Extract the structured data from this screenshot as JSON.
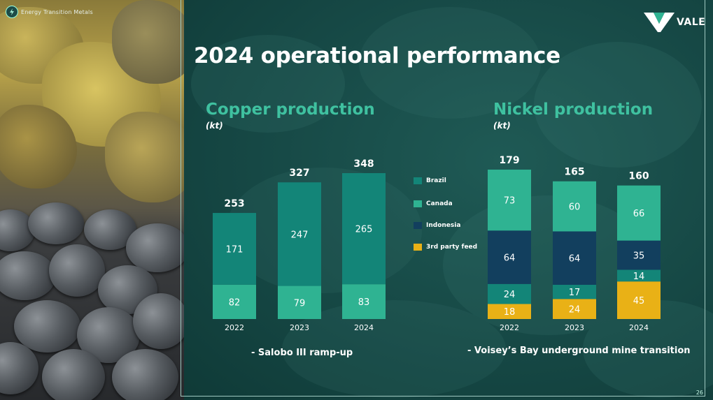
{
  "slide_title": "2024 operational performance",
  "brand_tag": "Energy Transition Metals",
  "logo_text": "VALE",
  "page_number": "26",
  "colors": {
    "brazil": "#138578",
    "canada": "#2fb392",
    "indonesia": "#123f5e",
    "third_party": "#e9b116",
    "accent": "#3fc1a0"
  },
  "copper": {
    "title": "Copper production",
    "unit": "(kt)",
    "note": "- Salobo III ramp-up"
  },
  "nickel": {
    "title": "Nickel production",
    "unit": "(kt)",
    "note": "- Voisey’s Bay underground mine transition"
  },
  "legend": [
    {
      "label": "Brazil",
      "color": "#138578"
    },
    {
      "label": "Canada",
      "color": "#2fb392"
    },
    {
      "label": "Indonesia",
      "color": "#123f5e"
    },
    {
      "label": "3rd party feed",
      "color": "#e9b116"
    }
  ],
  "chart_data": [
    {
      "type": "bar",
      "stacked": true,
      "title": "Copper production",
      "ylabel": "(kt)",
      "categories": [
        "2022",
        "2023",
        "2024"
      ],
      "series": [
        {
          "name": "Canada",
          "values": [
            82,
            79,
            83
          ]
        },
        {
          "name": "Brazil",
          "values": [
            171,
            247,
            265
          ]
        }
      ],
      "totals": [
        253,
        327,
        348
      ],
      "ylim": [
        0,
        348
      ]
    },
    {
      "type": "bar",
      "stacked": true,
      "title": "Nickel production",
      "ylabel": "(kt)",
      "categories": [
        "2022",
        "2023",
        "2024"
      ],
      "series": [
        {
          "name": "3rd party feed",
          "values": [
            18,
            24,
            45
          ]
        },
        {
          "name": "Brazil",
          "values": [
            24,
            17,
            14
          ]
        },
        {
          "name": "Indonesia",
          "values": [
            64,
            64,
            35
          ]
        },
        {
          "name": "Canada",
          "values": [
            73,
            60,
            66
          ]
        }
      ],
      "totals": [
        179,
        165,
        160
      ],
      "ylim": [
        0,
        179
      ]
    }
  ]
}
